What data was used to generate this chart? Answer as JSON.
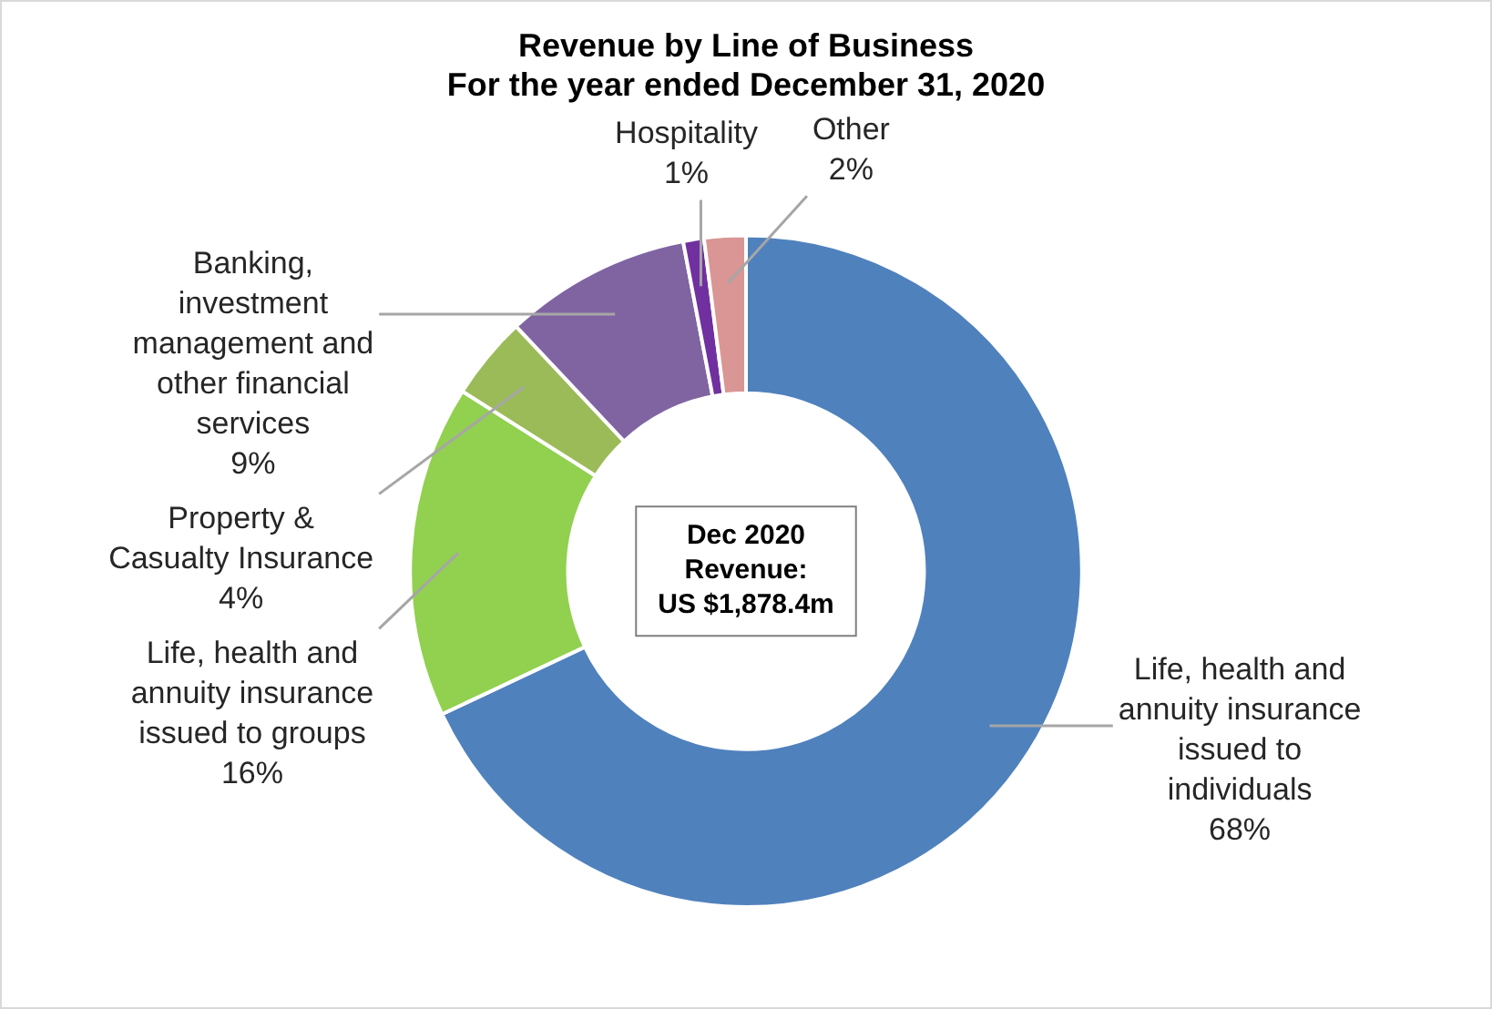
{
  "chart_data": {
    "type": "donut",
    "title": "Revenue by Line of Business",
    "subtitle": "For the year ended December 31, 2020",
    "categories": [
      "Life, health and annuity insurance issued to individuals",
      "Life, health and annuity insurance issued to groups",
      "Property & Casualty Insurance",
      "Banking, investment management and other financial services",
      "Hospitality",
      "Other"
    ],
    "values": [
      68,
      16,
      4,
      9,
      1,
      2
    ],
    "value_labels": [
      "68%",
      "16%",
      "4%",
      "9%",
      "1%",
      "2%"
    ],
    "colors": [
      "#4f81bd",
      "#92d050",
      "#9bbb59",
      "#8064a2",
      "#7030a0",
      "#d99694"
    ],
    "annotations": [
      "Dec 2020\nRevenue:\nUS $1,878.4m"
    ],
    "legend": false
  }
}
